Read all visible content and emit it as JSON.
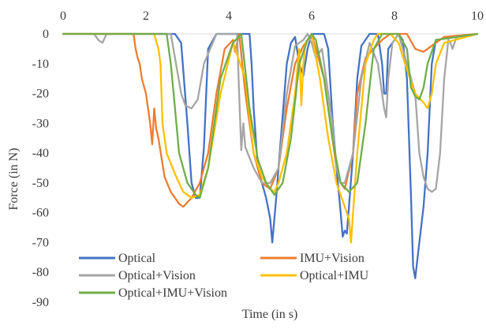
{
  "chart_data": {
    "type": "line",
    "title": "",
    "xlabel": "Time (in s)",
    "ylabel": "Force (in N)",
    "xlim": [
      0,
      10
    ],
    "ylim": [
      -90,
      0
    ],
    "x_ticks": [
      0,
      2,
      4,
      6,
      8,
      10
    ],
    "y_ticks": [
      0,
      -10,
      -20,
      -30,
      -40,
      -50,
      -60,
      -70,
      -80,
      -90
    ],
    "x_tick_labels": [
      "0",
      "2",
      "4",
      "6",
      "8",
      "10"
    ],
    "y_tick_labels": [
      "0",
      "-10",
      "-20",
      "-30",
      "-40",
      "-50",
      "-60",
      "-70",
      "-80",
      "-90"
    ],
    "x_axis_position": "top",
    "grid": false,
    "legend_position": "bottom-inside",
    "series": [
      {
        "name": "Optical",
        "color": "#4472c4",
        "x": [
          0,
          2.5,
          2.7,
          2.85,
          3.0,
          3.05,
          3.1,
          3.2,
          3.3,
          3.4,
          3.5,
          3.7,
          4.3,
          4.5,
          4.55,
          4.6,
          4.7,
          4.9,
          5.0,
          5.05,
          5.1,
          5.15,
          5.2,
          5.4,
          5.5,
          5.6,
          5.7,
          5.8,
          5.9,
          6.0,
          6.3,
          6.4,
          6.5,
          6.6,
          6.7,
          6.75,
          6.8,
          6.85,
          6.9,
          7.0,
          7.1,
          7.2,
          7.4,
          7.6,
          7.7,
          7.75,
          7.8,
          7.85,
          8.1,
          8.2,
          8.3,
          8.4,
          8.45,
          8.5,
          8.6,
          8.7,
          8.8,
          8.9,
          9.0,
          10
        ],
        "y": [
          0,
          0,
          0,
          -3,
          -30,
          -40,
          -50,
          -55,
          -55,
          -38,
          -5,
          0,
          0,
          0,
          -10,
          -25,
          -45,
          -55,
          -62,
          -70,
          -62,
          -54,
          -45,
          -10,
          -3,
          -1,
          -10,
          -14,
          -5,
          0,
          0,
          -5,
          -28,
          -45,
          -60,
          -68,
          -66,
          -67,
          -58,
          -40,
          -15,
          -4,
          0,
          0,
          -10,
          -20,
          -20,
          -5,
          0,
          -2,
          -15,
          -55,
          -78,
          -82,
          -70,
          -58,
          -40,
          -10,
          -2,
          0
        ]
      },
      {
        "name": "IMU+Vision",
        "color": "#ed7d31",
        "x": [
          0,
          1.7,
          1.75,
          1.8,
          1.85,
          1.9,
          2.0,
          2.1,
          2.15,
          2.2,
          2.25,
          2.3,
          2.45,
          2.6,
          2.8,
          2.9,
          3.1,
          3.3,
          3.5,
          3.7,
          3.9,
          4.1,
          4.15,
          4.2,
          4.25,
          4.4,
          4.6,
          4.8,
          5.0,
          5.2,
          5.4,
          5.6,
          5.8,
          6.0,
          6.3,
          6.5,
          6.6,
          6.7,
          6.8,
          7.0,
          7.1,
          7.3,
          7.5,
          7.7,
          7.9,
          8.1,
          8.3,
          8.5,
          8.7,
          9.0,
          9.2,
          10
        ],
        "y": [
          0,
          0,
          -5,
          -8,
          -10,
          -15,
          -20,
          -30,
          -37,
          -25,
          -32,
          -35,
          -48,
          -53,
          -57,
          -58,
          -55,
          -50,
          -40,
          -20,
          -5,
          -2,
          -6,
          -3,
          0,
          -20,
          -40,
          -50,
          -52,
          -45,
          -25,
          -10,
          -4,
          0,
          -15,
          -35,
          -45,
          -50,
          -52,
          -40,
          -20,
          -8,
          -5,
          -2,
          0,
          0,
          0,
          -5,
          -6,
          -3,
          -1,
          0
        ]
      },
      {
        "name": "Optical+Vision",
        "color": "#a5a5a5",
        "x": [
          0,
          0.75,
          0.85,
          0.95,
          1.05,
          2.6,
          2.75,
          2.85,
          2.95,
          3.1,
          3.25,
          3.4,
          3.7,
          4.2,
          4.25,
          4.3,
          4.35,
          4.4,
          4.6,
          4.8,
          5.0,
          5.2,
          5.4,
          5.6,
          5.8,
          5.9,
          6.0,
          6.1,
          6.25,
          6.5,
          6.6,
          6.7,
          6.8,
          7.0,
          7.2,
          7.4,
          7.6,
          7.75,
          7.8,
          7.85,
          7.95,
          8.1,
          8.5,
          8.6,
          8.7,
          8.8,
          8.9,
          9.0,
          9.1,
          9.2,
          9.3,
          9.35,
          9.4,
          9.5,
          10
        ],
        "y": [
          0,
          0,
          -2,
          -3,
          0,
          0,
          -12,
          -20,
          -24,
          -25,
          -22,
          -10,
          0,
          0,
          -20,
          -39,
          -30,
          -38,
          -45,
          -50,
          -50,
          -45,
          -20,
          -4,
          -2,
          0,
          -3,
          -8,
          -5,
          -30,
          -45,
          -50,
          -50,
          -40,
          -15,
          -3,
          -10,
          -25,
          -28,
          -15,
          -3,
          0,
          -20,
          -40,
          -48,
          -52,
          -53,
          -52,
          -40,
          -15,
          -2,
          -3,
          -5,
          -1,
          0
        ]
      },
      {
        "name": "Optical+IMU",
        "color": "#ffc000",
        "x": [
          0,
          2.2,
          2.3,
          2.35,
          2.4,
          2.45,
          2.5,
          2.7,
          2.9,
          3.1,
          3.3,
          3.5,
          3.8,
          4.1,
          4.4,
          4.6,
          4.8,
          5.0,
          5.1,
          5.2,
          5.4,
          5.6,
          5.7,
          5.75,
          5.8,
          5.85,
          5.9,
          6.0,
          6.2,
          6.4,
          6.6,
          6.8,
          6.9,
          6.95,
          7.0,
          7.1,
          7.3,
          7.5,
          7.6,
          7.7,
          7.9,
          8.1,
          8.3,
          8.5,
          8.7,
          8.8,
          8.9,
          9.0,
          9.2,
          10
        ],
        "y": [
          0,
          0,
          -5,
          -10,
          -30,
          -35,
          -40,
          -47,
          -53,
          -55,
          -54,
          -45,
          -20,
          -3,
          -15,
          -40,
          -48,
          -52,
          -53,
          -50,
          -40,
          -20,
          -5,
          -24,
          -10,
          -3,
          -2,
          0,
          -15,
          -35,
          -50,
          -58,
          -62,
          -70,
          -60,
          -40,
          -10,
          -2,
          0,
          0,
          0,
          -3,
          -12,
          -20,
          -23,
          -25,
          -20,
          -10,
          -3,
          0
        ]
      },
      {
        "name": "Optical+IMU+Vision",
        "color": "#70ad47",
        "x": [
          0,
          2.5,
          2.6,
          2.7,
          2.8,
          3.0,
          3.2,
          3.3,
          3.5,
          3.8,
          4.1,
          4.3,
          4.5,
          4.7,
          4.9,
          5.1,
          5.3,
          5.5,
          5.7,
          5.9,
          6.0,
          6.1,
          6.3,
          6.5,
          6.7,
          6.9,
          7.1,
          7.3,
          7.5,
          7.7,
          7.9,
          8.1,
          8.3,
          8.4,
          8.5,
          8.6,
          8.65,
          8.7,
          8.8,
          9.0,
          10
        ],
        "y": [
          0,
          0,
          -10,
          -25,
          -40,
          -50,
          -54,
          -55,
          -45,
          -15,
          -3,
          0,
          -25,
          -42,
          -50,
          -54,
          -50,
          -35,
          -10,
          -2,
          0,
          -2,
          -15,
          -35,
          -50,
          -53,
          -50,
          -30,
          -5,
          0,
          0,
          0,
          -5,
          -18,
          -21,
          -22,
          -20,
          -18,
          -10,
          -2,
          0
        ]
      }
    ]
  }
}
